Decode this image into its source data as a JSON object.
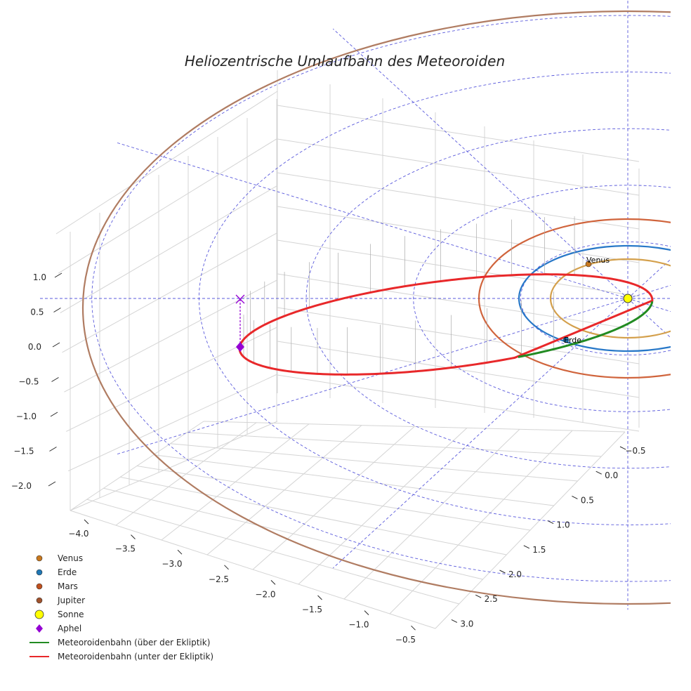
{
  "chart_data": {
    "type": "line",
    "projection": "3d",
    "title": "Heliozentrische Umlaufbahn des Meteoroiden",
    "x_axis": {
      "label": "",
      "ticks": [
        "−4.0",
        "−3.5",
        "−3.0",
        "−2.5",
        "−2.0",
        "−1.5",
        "−1.0",
        "−0.5"
      ],
      "values": [
        -4.0,
        -3.5,
        -3.0,
        -2.5,
        -2.0,
        -1.5,
        -1.0,
        -0.5
      ]
    },
    "y_axis": {
      "label": "",
      "ticks": [
        "−0.5",
        "0.0",
        "0.5",
        "1.0",
        "1.5",
        "2.0",
        "2.5",
        "3.0"
      ],
      "values": [
        -0.5,
        0.0,
        0.5,
        1.0,
        1.5,
        2.0,
        2.5,
        3.0
      ]
    },
    "z_axis": {
      "label": "",
      "ticks": [
        "1.0",
        "0.5",
        "0.0",
        "−0.5",
        "−1.0",
        "−1.5",
        "−2.0"
      ],
      "values": [
        1.0,
        0.5,
        0.0,
        -0.5,
        -1.0,
        -1.5,
        -2.0
      ]
    },
    "planet_orbits": [
      {
        "name": "Venus",
        "radius_au": 0.72,
        "color": "#d4a04c"
      },
      {
        "name": "Erde",
        "radius_au": 1.0,
        "color": "#2878c8"
      },
      {
        "name": "Mars",
        "radius_au": 1.52,
        "color": "#d0643c"
      },
      {
        "name": "Jupiter",
        "radius_au": 5.2,
        "color": "#b07c62"
      }
    ],
    "planet_labels": [
      {
        "name": "Venus",
        "text": "Venus",
        "color": "#c8781e"
      },
      {
        "name": "Erde",
        "text": "Erde",
        "color": "#1f77b4"
      }
    ],
    "sun": {
      "name": "Sonne",
      "color": "#ffff00"
    },
    "aphel": {
      "name": "Aphel",
      "color": "#9400d3"
    },
    "meteoroid_orbit": {
      "series": [
        {
          "name": "Meteoroidenbahn (über der Ekliptik)",
          "color": "#228b22"
        },
        {
          "name": "Meteoroidenbahn (unter der Ekliptik)",
          "color": "#e8282a"
        }
      ]
    },
    "legend": {
      "placement": "bottom-left",
      "entries": [
        {
          "label": "Venus",
          "marker": "circle",
          "color": "#c8781e"
        },
        {
          "label": "Erde",
          "marker": "circle",
          "color": "#1f77b4"
        },
        {
          "label": "Mars",
          "marker": "circle",
          "color": "#c0501e"
        },
        {
          "label": "Jupiter",
          "marker": "circle",
          "color": "#a0522d"
        },
        {
          "label": "Sonne",
          "marker": "circle-large",
          "color": "#ffff00"
        },
        {
          "label": "Aphel",
          "marker": "diamond",
          "color": "#9400d3"
        },
        {
          "label": "Meteoroidenbahn (über der Ekliptik)",
          "marker": "line",
          "color": "#228b22"
        },
        {
          "label": "Meteoroidenbahn (unter der Ekliptik)",
          "marker": "line",
          "color": "#e8282a"
        }
      ]
    },
    "grid": true
  }
}
